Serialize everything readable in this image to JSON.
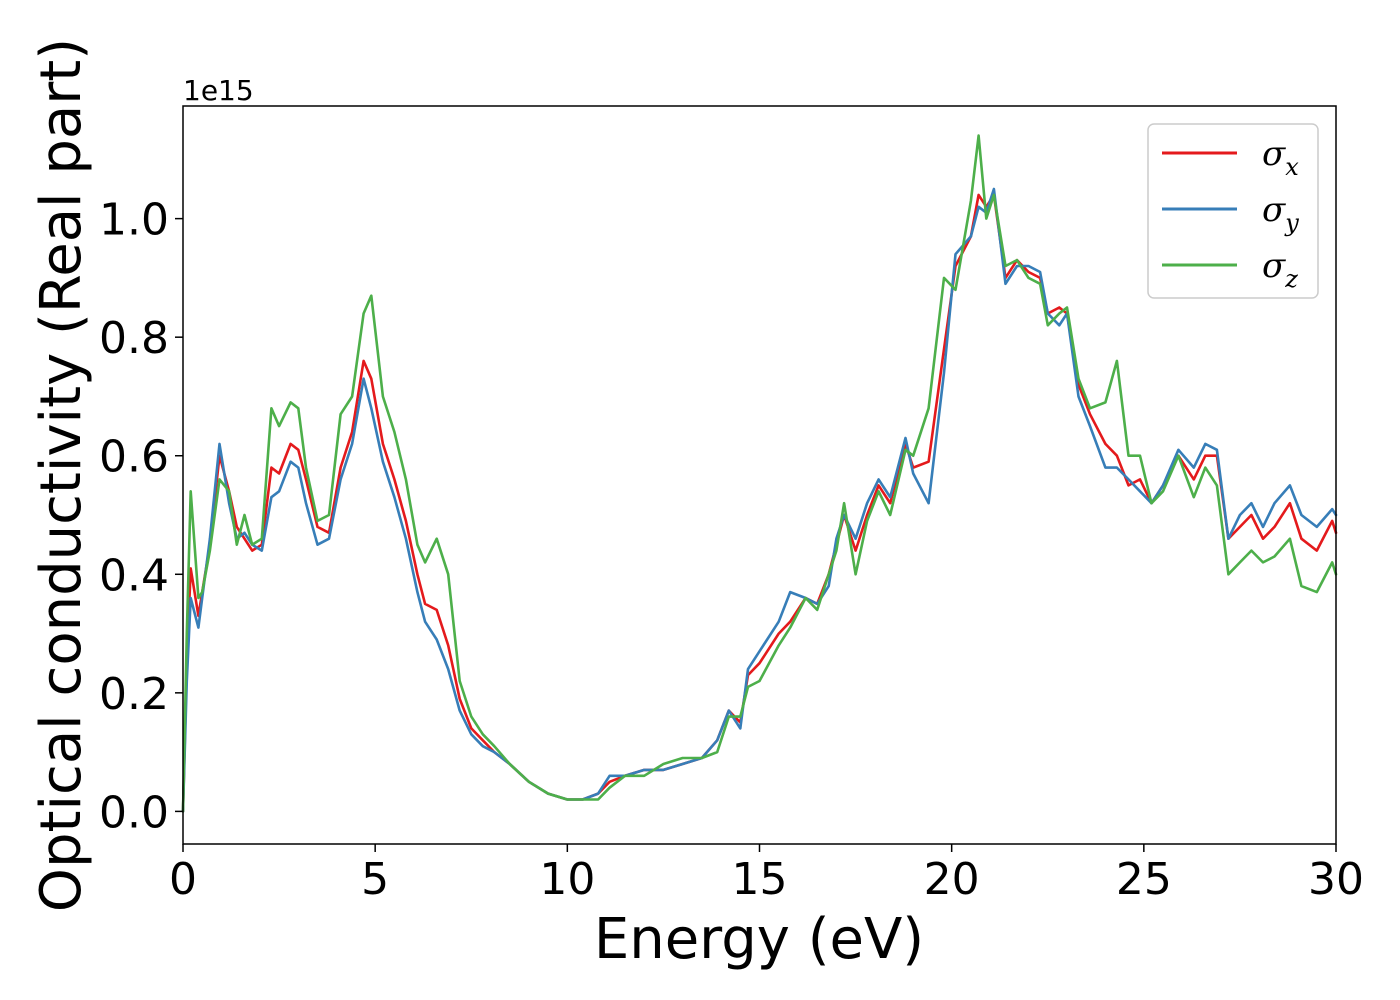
{
  "chart_data": {
    "type": "line",
    "xlabel": "Energy (eV)",
    "ylabel": "Optical conductivity (Real part)",
    "y_offset_label": "1e15",
    "xlim": [
      0,
      30
    ],
    "ylim": [
      -0.055,
      1.19
    ],
    "xticks": [
      0,
      5,
      10,
      15,
      20,
      25,
      30
    ],
    "yticks": [
      0.0,
      0.2,
      0.4,
      0.6,
      0.8,
      1.0
    ],
    "grid": false,
    "legend_position": "top-right",
    "series": [
      {
        "name": "σ",
        "sub": "x",
        "color": "#e41a1c",
        "x": [
          0,
          0.1,
          0.2,
          0.4,
          0.5,
          0.7,
          0.95,
          1.2,
          1.4,
          1.6,
          1.8,
          2.05,
          2.3,
          2.5,
          2.8,
          3.0,
          3.2,
          3.5,
          3.8,
          4.1,
          4.4,
          4.7,
          4.9,
          5.2,
          5.5,
          5.8,
          6.1,
          6.3,
          6.6,
          6.9,
          7.2,
          7.5,
          7.8,
          8.1,
          8.5,
          9.0,
          9.5,
          10.0,
          10.4,
          10.8,
          11.1,
          11.5,
          12.0,
          12.5,
          13.0,
          13.5,
          13.9,
          14.2,
          14.5,
          14.7,
          15.0,
          15.5,
          15.8,
          16.2,
          16.5,
          16.8,
          17.0,
          17.2,
          17.5,
          17.8,
          18.1,
          18.4,
          18.8,
          19.0,
          19.4,
          19.8,
          20.1,
          20.5,
          20.7,
          20.9,
          21.1,
          21.4,
          21.7,
          22.0,
          22.3,
          22.5,
          22.8,
          23.0,
          23.3,
          23.6,
          24.0,
          24.3,
          24.6,
          24.9,
          25.2,
          25.5,
          25.9,
          26.3,
          26.6,
          26.9,
          27.2,
          27.5,
          27.8,
          28.1,
          28.4,
          28.8,
          29.1,
          29.5,
          29.9,
          30.0
        ],
        "values": [
          0.0,
          0.25,
          0.41,
          0.33,
          0.37,
          0.45,
          0.6,
          0.54,
          0.48,
          0.46,
          0.44,
          0.45,
          0.58,
          0.57,
          0.62,
          0.61,
          0.56,
          0.48,
          0.47,
          0.58,
          0.64,
          0.76,
          0.73,
          0.62,
          0.56,
          0.49,
          0.4,
          0.35,
          0.34,
          0.28,
          0.19,
          0.14,
          0.12,
          0.1,
          0.08,
          0.05,
          0.03,
          0.02,
          0.02,
          0.03,
          0.05,
          0.06,
          0.07,
          0.07,
          0.08,
          0.09,
          0.12,
          0.17,
          0.15,
          0.23,
          0.25,
          0.3,
          0.32,
          0.36,
          0.35,
          0.4,
          0.45,
          0.5,
          0.44,
          0.5,
          0.55,
          0.52,
          0.62,
          0.58,
          0.59,
          0.78,
          0.92,
          0.97,
          1.04,
          1.02,
          1.04,
          0.9,
          0.93,
          0.91,
          0.9,
          0.84,
          0.85,
          0.84,
          0.72,
          0.67,
          0.62,
          0.6,
          0.55,
          0.56,
          0.52,
          0.55,
          0.6,
          0.56,
          0.6,
          0.6,
          0.46,
          0.48,
          0.5,
          0.46,
          0.48,
          0.52,
          0.46,
          0.44,
          0.49,
          0.47
        ]
      },
      {
        "name": "σ",
        "sub": "y",
        "color": "#377eb8",
        "x": [
          0,
          0.1,
          0.2,
          0.4,
          0.5,
          0.7,
          0.95,
          1.2,
          1.4,
          1.6,
          1.8,
          2.05,
          2.3,
          2.5,
          2.8,
          3.0,
          3.2,
          3.5,
          3.8,
          4.1,
          4.4,
          4.7,
          4.9,
          5.2,
          5.5,
          5.8,
          6.1,
          6.3,
          6.6,
          6.9,
          7.2,
          7.5,
          7.8,
          8.1,
          8.5,
          9.0,
          9.5,
          10.0,
          10.4,
          10.8,
          11.1,
          11.5,
          12.0,
          12.5,
          13.0,
          13.5,
          13.9,
          14.2,
          14.5,
          14.7,
          15.0,
          15.5,
          15.8,
          16.2,
          16.5,
          16.8,
          17.0,
          17.2,
          17.5,
          17.8,
          18.1,
          18.4,
          18.8,
          19.0,
          19.4,
          19.8,
          20.1,
          20.5,
          20.7,
          20.9,
          21.1,
          21.4,
          21.7,
          22.0,
          22.3,
          22.5,
          22.8,
          23.0,
          23.3,
          23.6,
          24.0,
          24.3,
          24.6,
          24.9,
          25.2,
          25.5,
          25.9,
          26.3,
          26.6,
          26.9,
          27.2,
          27.5,
          27.8,
          28.1,
          28.4,
          28.8,
          29.1,
          29.5,
          29.9,
          30.0
        ],
        "values": [
          0.0,
          0.22,
          0.36,
          0.31,
          0.36,
          0.46,
          0.62,
          0.52,
          0.46,
          0.47,
          0.45,
          0.44,
          0.53,
          0.54,
          0.59,
          0.58,
          0.52,
          0.45,
          0.46,
          0.56,
          0.62,
          0.73,
          0.68,
          0.59,
          0.53,
          0.46,
          0.37,
          0.32,
          0.29,
          0.24,
          0.17,
          0.13,
          0.11,
          0.1,
          0.08,
          0.05,
          0.03,
          0.02,
          0.02,
          0.03,
          0.06,
          0.06,
          0.07,
          0.07,
          0.08,
          0.09,
          0.12,
          0.17,
          0.14,
          0.24,
          0.27,
          0.32,
          0.37,
          0.36,
          0.35,
          0.38,
          0.46,
          0.5,
          0.46,
          0.52,
          0.56,
          0.53,
          0.63,
          0.57,
          0.52,
          0.74,
          0.94,
          0.97,
          1.02,
          1.01,
          1.05,
          0.89,
          0.92,
          0.92,
          0.91,
          0.84,
          0.82,
          0.84,
          0.7,
          0.65,
          0.58,
          0.58,
          0.56,
          0.54,
          0.52,
          0.55,
          0.61,
          0.58,
          0.62,
          0.61,
          0.46,
          0.5,
          0.52,
          0.48,
          0.52,
          0.55,
          0.5,
          0.48,
          0.51,
          0.5
        ]
      },
      {
        "name": "σ",
        "sub": "z",
        "color": "#4daf4a",
        "x": [
          0,
          0.1,
          0.2,
          0.4,
          0.5,
          0.7,
          0.95,
          1.2,
          1.4,
          1.6,
          1.8,
          2.05,
          2.3,
          2.5,
          2.8,
          3.0,
          3.2,
          3.5,
          3.8,
          4.1,
          4.4,
          4.7,
          4.9,
          5.2,
          5.5,
          5.8,
          6.1,
          6.3,
          6.6,
          6.9,
          7.2,
          7.5,
          7.8,
          8.1,
          8.5,
          9.0,
          9.5,
          10.0,
          10.4,
          10.8,
          11.1,
          11.5,
          12.0,
          12.5,
          13.0,
          13.5,
          13.9,
          14.2,
          14.5,
          14.7,
          15.0,
          15.5,
          15.8,
          16.2,
          16.5,
          16.8,
          17.0,
          17.2,
          17.5,
          17.8,
          18.1,
          18.4,
          18.8,
          19.0,
          19.4,
          19.8,
          20.1,
          20.5,
          20.7,
          20.9,
          21.1,
          21.4,
          21.7,
          22.0,
          22.3,
          22.5,
          22.8,
          23.0,
          23.3,
          23.6,
          24.0,
          24.3,
          24.6,
          24.9,
          25.2,
          25.5,
          25.9,
          26.3,
          26.6,
          26.9,
          27.2,
          27.5,
          27.8,
          28.1,
          28.4,
          28.8,
          29.1,
          29.5,
          29.9,
          30.0
        ],
        "values": [
          0.0,
          0.3,
          0.54,
          0.36,
          0.37,
          0.44,
          0.56,
          0.54,
          0.45,
          0.5,
          0.45,
          0.46,
          0.68,
          0.65,
          0.69,
          0.68,
          0.58,
          0.49,
          0.5,
          0.67,
          0.7,
          0.84,
          0.87,
          0.7,
          0.64,
          0.56,
          0.45,
          0.42,
          0.46,
          0.4,
          0.22,
          0.16,
          0.13,
          0.11,
          0.08,
          0.05,
          0.03,
          0.02,
          0.02,
          0.02,
          0.04,
          0.06,
          0.06,
          0.08,
          0.09,
          0.09,
          0.1,
          0.16,
          0.16,
          0.21,
          0.22,
          0.28,
          0.31,
          0.36,
          0.34,
          0.4,
          0.44,
          0.52,
          0.4,
          0.49,
          0.54,
          0.5,
          0.61,
          0.6,
          0.68,
          0.9,
          0.88,
          1.03,
          1.14,
          1.0,
          1.04,
          0.92,
          0.93,
          0.9,
          0.89,
          0.82,
          0.84,
          0.85,
          0.73,
          0.68,
          0.69,
          0.76,
          0.6,
          0.6,
          0.52,
          0.54,
          0.6,
          0.53,
          0.58,
          0.55,
          0.4,
          0.42,
          0.44,
          0.42,
          0.43,
          0.46,
          0.38,
          0.37,
          0.42,
          0.4
        ]
      }
    ]
  }
}
